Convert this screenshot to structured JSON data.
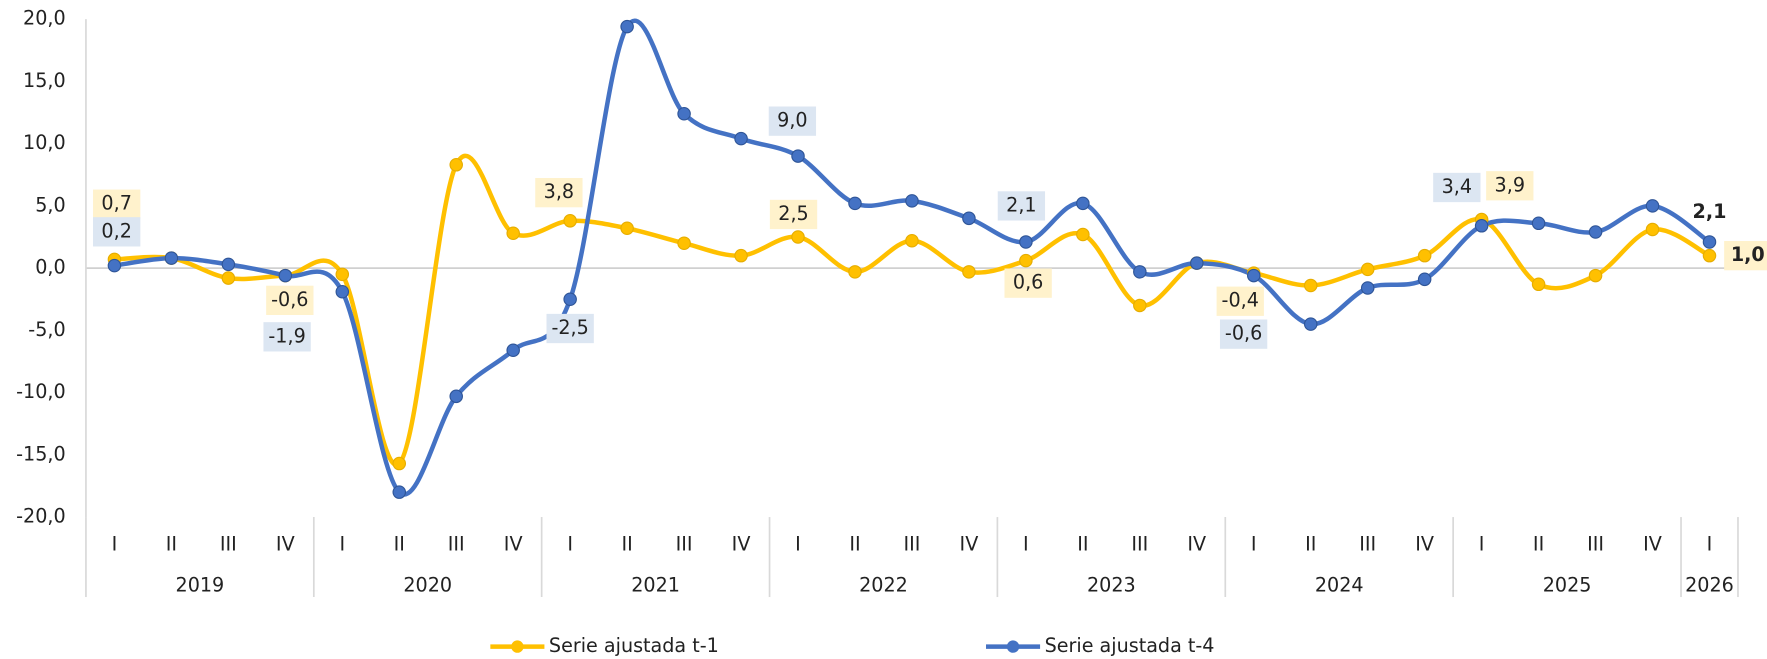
{
  "chart_data": {
    "type": "line",
    "years": [
      {
        "label": "2019",
        "quarters": [
          "I",
          "II",
          "III",
          "IV"
        ]
      },
      {
        "label": "2020",
        "quarters": [
          "I",
          "II",
          "III",
          "IV"
        ]
      },
      {
        "label": "2021",
        "quarters": [
          "I",
          "II",
          "III",
          "IV"
        ]
      },
      {
        "label": "2022",
        "quarters": [
          "I",
          "II",
          "III",
          "IV"
        ]
      },
      {
        "label": "2023",
        "quarters": [
          "I",
          "II",
          "III",
          "IV"
        ]
      },
      {
        "label": "2024",
        "quarters": [
          "I",
          "II",
          "III",
          "IV"
        ]
      },
      {
        "label": "2025",
        "quarters": [
          "I",
          "II",
          "III",
          "IV"
        ]
      },
      {
        "label": "2026",
        "quarters": [
          "I"
        ]
      }
    ],
    "ylim": [
      -20,
      20
    ],
    "yticks": [
      {
        "value": 20,
        "label": "20,0"
      },
      {
        "value": 15,
        "label": "15,0"
      },
      {
        "value": 10,
        "label": "10,0"
      },
      {
        "value": 5,
        "label": "5,0"
      },
      {
        "value": 0,
        "label": "0,0"
      },
      {
        "value": -5,
        "label": "-5,0"
      },
      {
        "value": -10,
        "label": "-10,0"
      },
      {
        "value": -15,
        "label": "-15,0"
      },
      {
        "value": -20,
        "label": "-20,0"
      }
    ],
    "series": [
      {
        "name": "Serie ajustada t-1",
        "color": "#FFC000",
        "label_bg": "#FFF2CC",
        "values": [
          0.7,
          0.8,
          -0.8,
          -0.6,
          -0.5,
          -15.7,
          8.3,
          2.8,
          3.8,
          3.2,
          2.0,
          1.0,
          2.5,
          -0.3,
          2.2,
          -0.3,
          0.6,
          2.7,
          -3.0,
          0.4,
          -0.4,
          -1.4,
          -0.1,
          1.0,
          3.9,
          -1.3,
          -0.6,
          3.1,
          1.0
        ],
        "value_labels": [
          "0,7",
          null,
          null,
          "-0,6",
          null,
          null,
          null,
          null,
          "3,8",
          null,
          null,
          null,
          "2,5",
          null,
          null,
          null,
          "0,6",
          null,
          null,
          null,
          "-0,4",
          null,
          null,
          null,
          "3,9",
          null,
          null,
          null,
          "1,0"
        ]
      },
      {
        "name": "Serie ajustada t-4",
        "color": "#4472C4",
        "label_bg": "#DCE6F2",
        "values": [
          0.2,
          0.8,
          0.3,
          -0.6,
          -1.9,
          -18.0,
          -10.3,
          -6.6,
          -2.5,
          19.4,
          12.4,
          10.4,
          9.0,
          5.2,
          5.4,
          4.0,
          2.1,
          5.2,
          -0.3,
          0.4,
          -0.6,
          -4.5,
          -1.6,
          -0.9,
          3.4,
          3.6,
          2.9,
          5.0,
          2.1
        ],
        "value_labels": [
          "0,2",
          null,
          null,
          null,
          "-1,9",
          null,
          null,
          null,
          "-2,5",
          null,
          null,
          null,
          "9,0",
          null,
          null,
          null,
          "2,1",
          null,
          null,
          null,
          "-0,6",
          null,
          null,
          null,
          "3,4",
          null,
          null,
          null,
          "2,1"
        ]
      }
    ]
  }
}
